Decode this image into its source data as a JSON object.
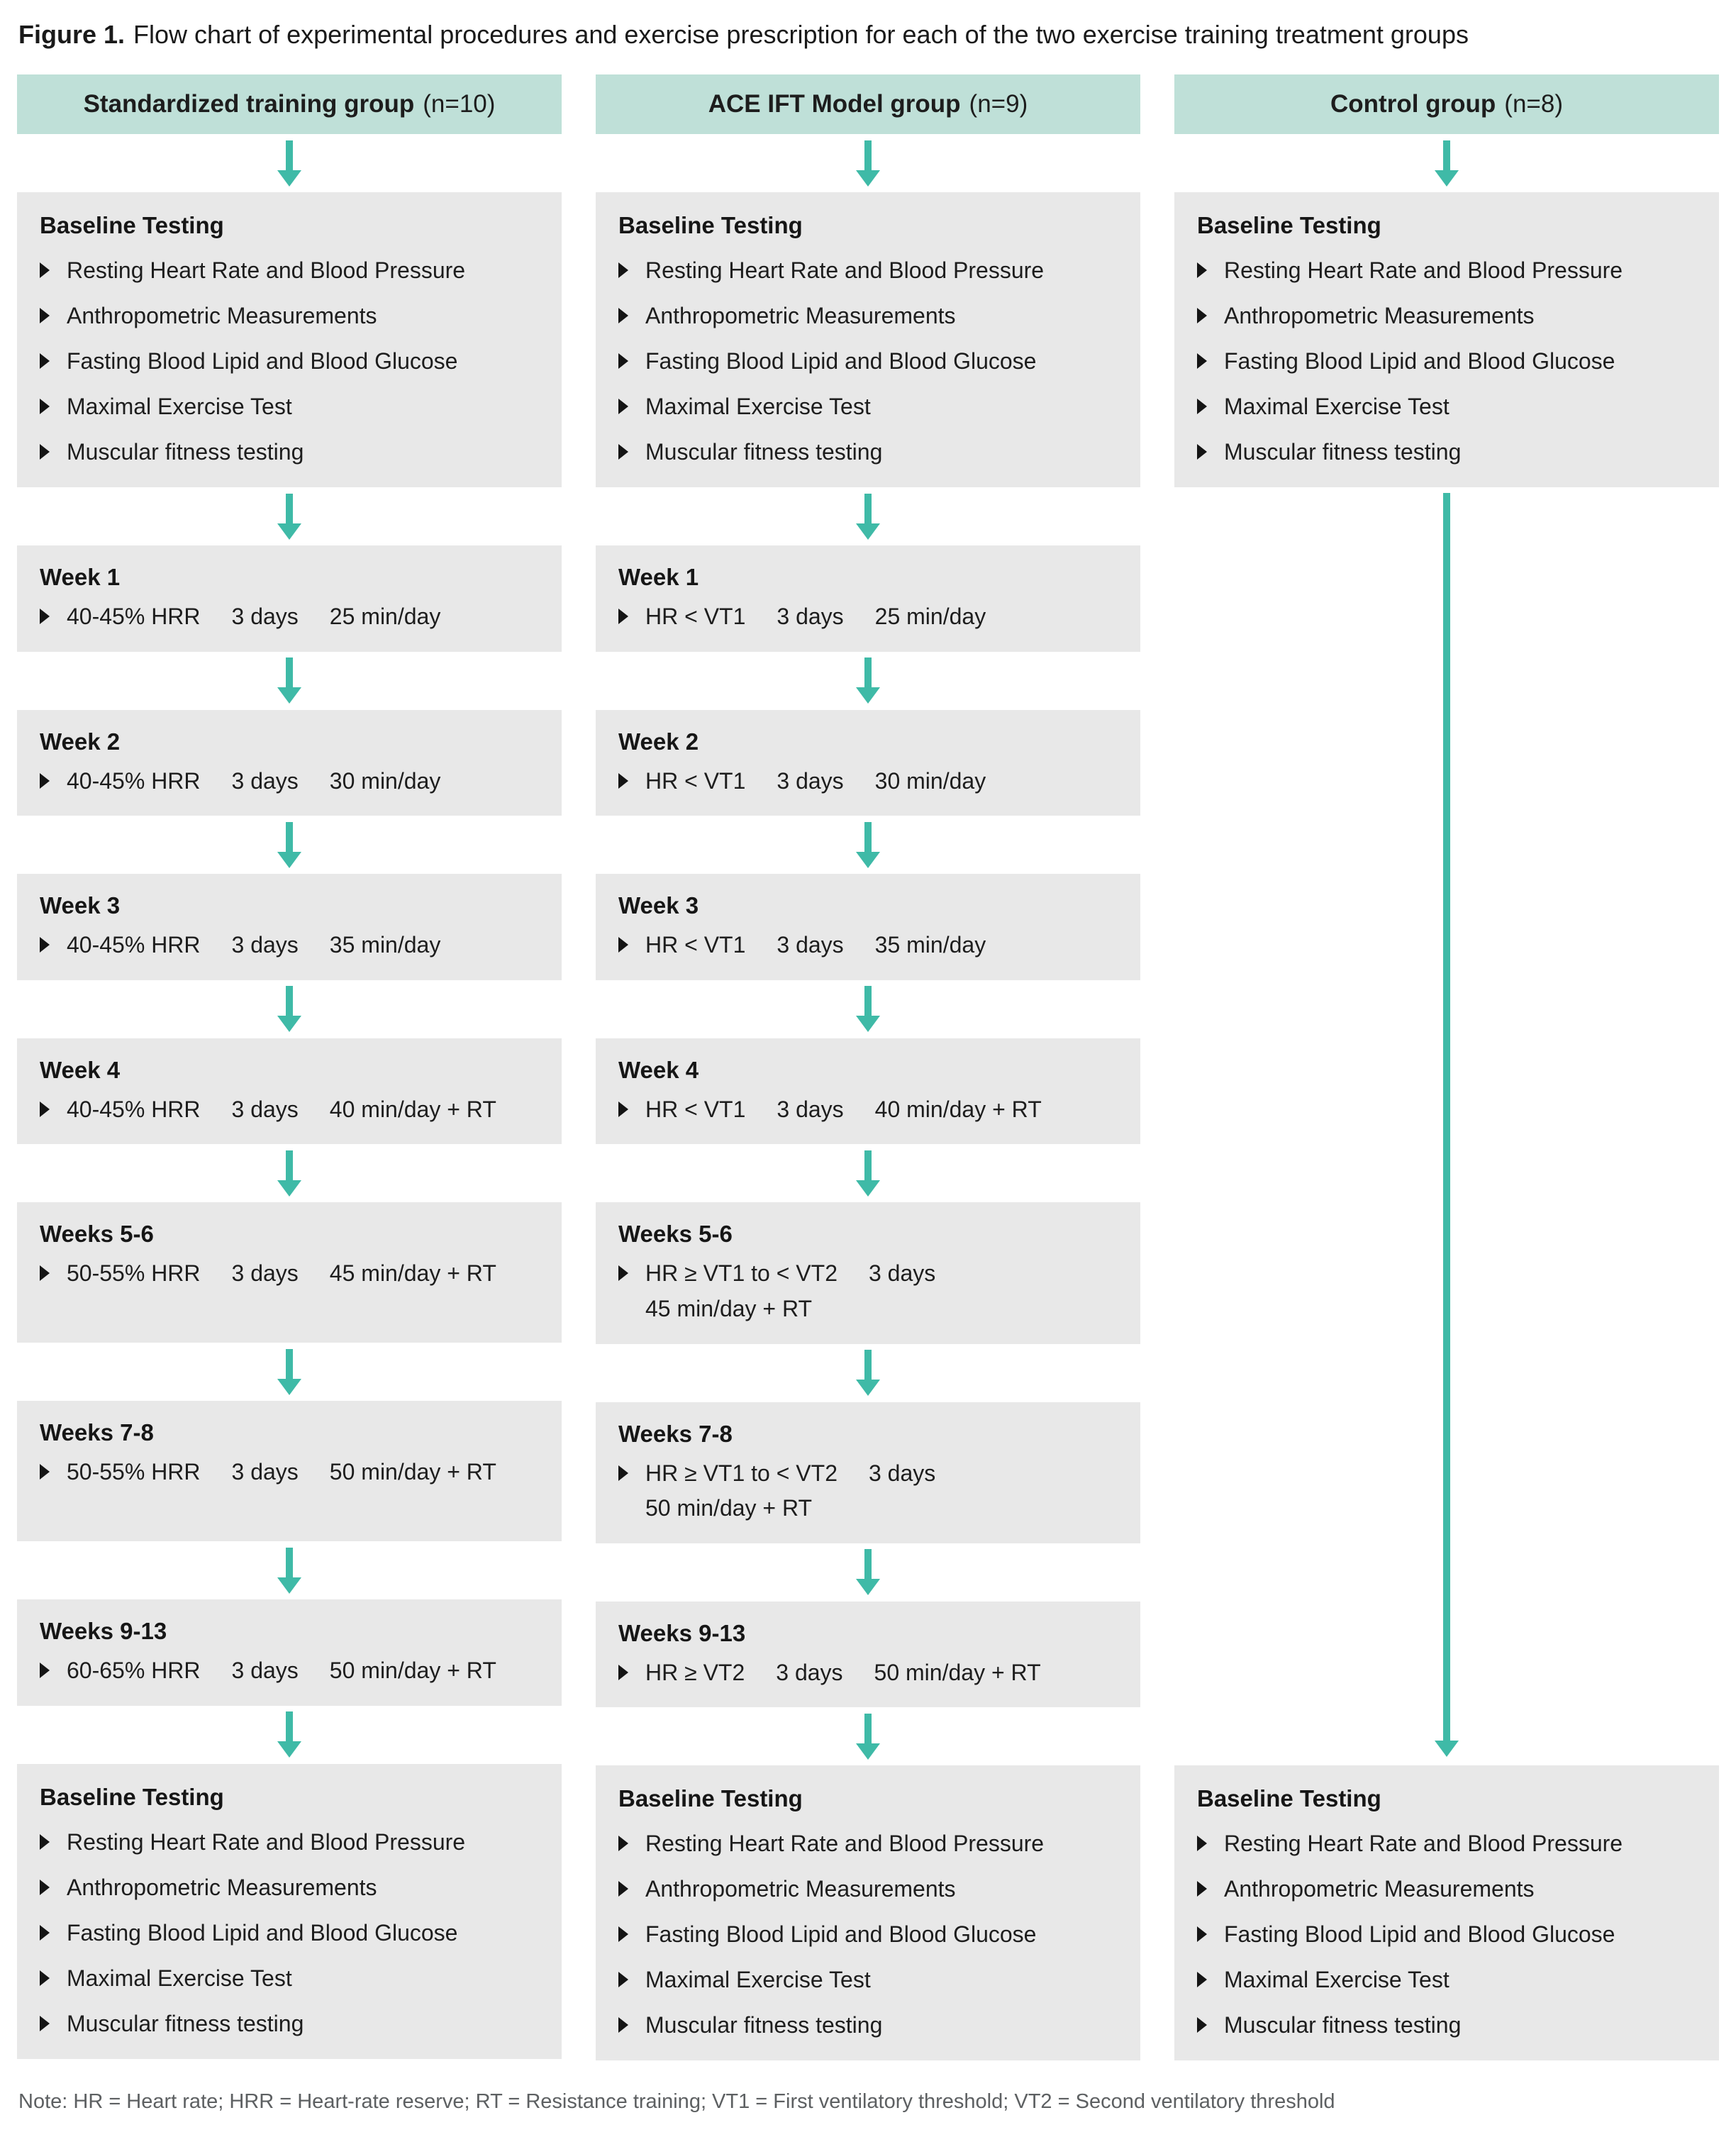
{
  "figure": {
    "label": "Figure 1.",
    "caption": "Flow chart of experimental procedures and exercise prescription for each of the two exercise training treatment groups"
  },
  "note": "Note: HR = Heart rate; HRR = Heart-rate reserve; RT = Resistance training; VT1 = First ventilatory threshold; VT2 = Second ventilatory threshold",
  "colors": {
    "header_bg": "#bfe0d8",
    "box_bg": "#e8e8e8",
    "arrow": "#3fbaa7",
    "text": "#1d1d1d",
    "note_text": "#5d6062"
  },
  "baseline_testing": {
    "title": "Baseline Testing",
    "items": [
      "Resting Heart Rate and Blood Pressure",
      "Anthropometric Measurements",
      "Fasting Blood Lipid and Blood Glucose",
      "Maximal Exercise Test",
      "Muscular fitness testing"
    ]
  },
  "columns": [
    {
      "id": "standardized",
      "header": {
        "name": "Standardized training group",
        "n": "(n=10)"
      },
      "weeks": [
        {
          "title": "Week 1",
          "tall": false,
          "lines": [
            [
              "40-45% HRR",
              "3 days",
              "25 min/day"
            ]
          ]
        },
        {
          "title": "Week 2",
          "tall": false,
          "lines": [
            [
              "40-45% HRR",
              "3 days",
              "30 min/day"
            ]
          ]
        },
        {
          "title": "Week 3",
          "tall": false,
          "lines": [
            [
              "40-45% HRR",
              "3 days",
              "35 min/day"
            ]
          ]
        },
        {
          "title": "Week 4",
          "tall": false,
          "lines": [
            [
              "40-45% HRR",
              "3 days",
              "40 min/day + RT"
            ]
          ]
        },
        {
          "title": "Weeks 5-6",
          "tall": true,
          "lines": [
            [
              "50-55% HRR",
              "3 days",
              "45 min/day + RT"
            ]
          ]
        },
        {
          "title": "Weeks 7-8",
          "tall": true,
          "lines": [
            [
              "50-55% HRR",
              "3 days",
              "50 min/day + RT"
            ]
          ]
        },
        {
          "title": "Weeks 9-13",
          "tall": false,
          "lines": [
            [
              "60-65% HRR",
              "3 days",
              "50 min/day + RT"
            ]
          ]
        }
      ]
    },
    {
      "id": "ace-ift",
      "header": {
        "name": "ACE IFT Model group",
        "n": "(n=9)"
      },
      "weeks": [
        {
          "title": "Week 1",
          "tall": false,
          "lines": [
            [
              "HR < VT1",
              "3 days",
              "25 min/day"
            ]
          ]
        },
        {
          "title": "Week 2",
          "tall": false,
          "lines": [
            [
              "HR < VT1",
              "3 days",
              "30 min/day"
            ]
          ]
        },
        {
          "title": "Week 3",
          "tall": false,
          "lines": [
            [
              "HR < VT1",
              "3 days",
              "35 min/day"
            ]
          ]
        },
        {
          "title": "Week 4",
          "tall": false,
          "lines": [
            [
              "HR < VT1",
              "3 days",
              "40 min/day + RT"
            ]
          ]
        },
        {
          "title": "Weeks 5-6",
          "tall": true,
          "lines": [
            [
              "HR ≥ VT1 to < VT2",
              "3 days"
            ],
            [
              "45 min/day + RT"
            ]
          ]
        },
        {
          "title": "Weeks 7-8",
          "tall": true,
          "lines": [
            [
              "HR ≥ VT1 to < VT2",
              "3 days"
            ],
            [
              "50 min/day + RT"
            ]
          ]
        },
        {
          "title": "Weeks 9-13",
          "tall": false,
          "lines": [
            [
              "HR ≥ VT2",
              "3 days",
              "50 min/day + RT"
            ]
          ]
        }
      ]
    },
    {
      "id": "control",
      "header": {
        "name": "Control group",
        "n": "(n=8)"
      },
      "weeks": []
    }
  ]
}
